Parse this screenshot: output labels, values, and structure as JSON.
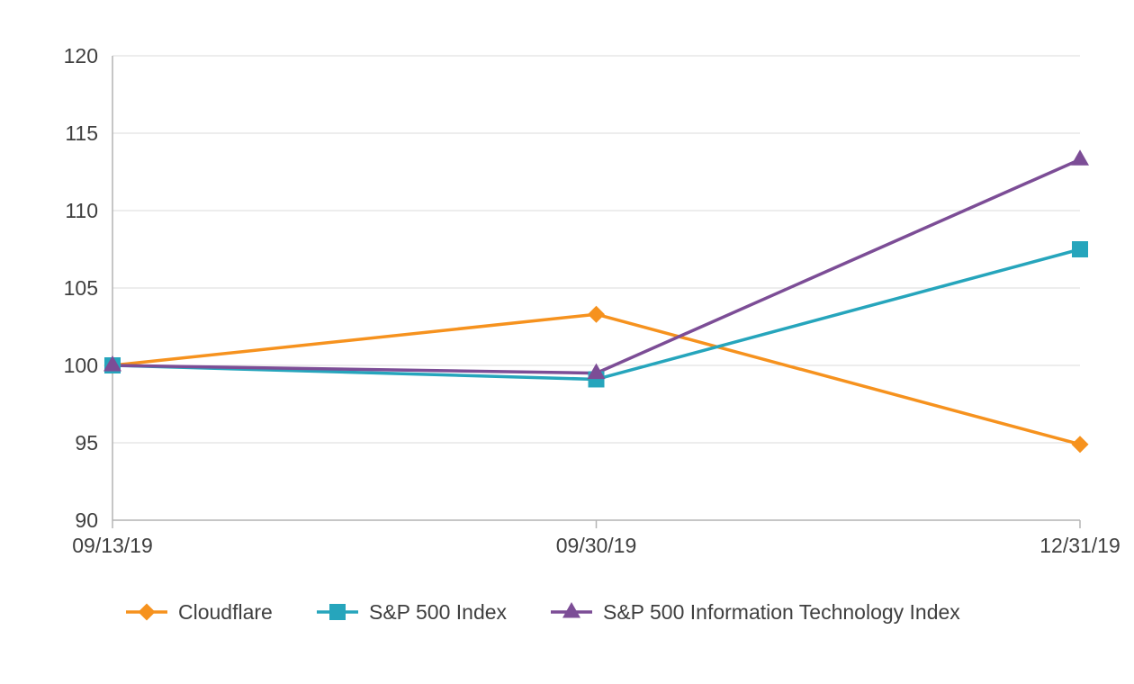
{
  "chart_data": {
    "type": "line",
    "title": "",
    "xlabel": "",
    "ylabel": "",
    "x_categories": [
      "09/13/19",
      "09/30/19",
      "12/31/19"
    ],
    "ylim": [
      90,
      120
    ],
    "yticks": [
      90,
      95,
      100,
      105,
      110,
      115,
      120
    ],
    "grid": "horizontal",
    "legend_position": "bottom",
    "series": [
      {
        "name": "Cloudflare",
        "color": "#F6921E",
        "marker": "diamond",
        "values": [
          100,
          103.3,
          94.9
        ]
      },
      {
        "name": "S&P 500 Index",
        "color": "#26A5BC",
        "marker": "square",
        "values": [
          100,
          99.1,
          107.5
        ]
      },
      {
        "name": "S&P 500 Information Technology Index",
        "color": "#7C4D96",
        "marker": "triangle",
        "values": [
          100,
          99.5,
          113.3
        ]
      }
    ]
  },
  "colors": {
    "background": "#FFFFFF",
    "gridline": "#DBDBDB",
    "axis": "#B4B4B4",
    "text": "#3F3F3F"
  }
}
